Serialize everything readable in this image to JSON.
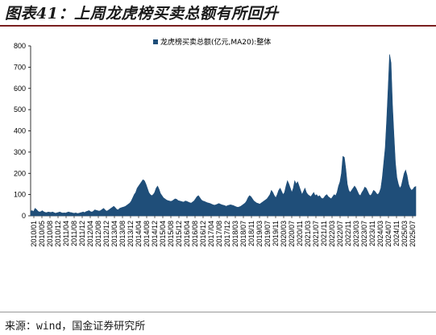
{
  "title": "图表41：上周龙虎榜买卖总额有所回升",
  "source": "来源：wind，国金证券研究所",
  "colors": {
    "series": "#1f4e79",
    "title_rule": "#7a1f1f"
  },
  "chart_data": {
    "type": "area",
    "legend": [
      "龙虎榜买卖总额(亿元,MA20):整体"
    ],
    "legend_position": "top-center",
    "grid": false,
    "ylim": [
      0,
      800
    ],
    "y_ticks": [
      "0",
      "100",
      "200",
      "300",
      "400",
      "500",
      "600",
      "700",
      "800"
    ],
    "x_ticks": [
      "2010/01",
      "2010/05",
      "2010/08",
      "2010/12",
      "2011/04",
      "2011/08",
      "2011/12",
      "2012/04",
      "2012/08",
      "2012/12",
      "2013/04",
      "2013/08",
      "2013/12",
      "2014/04",
      "2014/08",
      "2014/12",
      "2015/04",
      "2015/08",
      "2015/12",
      "2016/04",
      "2016/08",
      "2016/12",
      "2017/04",
      "2017/08",
      "2017/12",
      "2018/03",
      "2018/07",
      "2018/11",
      "2019/03",
      "2019/07",
      "2019/11",
      "2020/03",
      "2020/07",
      "2020/11",
      "2021/03",
      "2021/07",
      "2021/11",
      "2022/03",
      "2022/07",
      "2022/11",
      "2023/03",
      "2023/07",
      "2023/11",
      "2024/03",
      "2024/07",
      "2024/11",
      "2025/03",
      "2025/07"
    ],
    "series": [
      {
        "name": "龙虎榜买卖总额(亿元,MA20):整体",
        "points": [
          [
            0,
            22
          ],
          [
            1,
            25
          ],
          [
            2,
            20
          ],
          [
            3,
            35
          ],
          [
            4,
            30
          ],
          [
            5,
            22
          ],
          [
            6,
            18
          ],
          [
            7,
            20
          ],
          [
            8,
            24
          ],
          [
            9,
            19
          ],
          [
            10,
            16
          ],
          [
            11,
            15
          ],
          [
            12,
            18
          ],
          [
            13,
            17
          ],
          [
            14,
            16
          ],
          [
            15,
            18
          ],
          [
            16,
            15
          ],
          [
            17,
            12
          ],
          [
            18,
            14
          ],
          [
            19,
            16
          ],
          [
            20,
            18
          ],
          [
            21,
            15
          ],
          [
            22,
            13
          ],
          [
            23,
            14
          ],
          [
            24,
            13
          ],
          [
            25,
            16
          ],
          [
            26,
            18
          ],
          [
            27,
            16
          ],
          [
            28,
            15
          ],
          [
            29,
            13
          ],
          [
            30,
            12
          ],
          [
            31,
            14
          ],
          [
            32,
            11
          ],
          [
            33,
            12
          ],
          [
            34,
            14
          ],
          [
            35,
            16
          ],
          [
            36,
            18
          ],
          [
            37,
            15
          ],
          [
            38,
            20
          ],
          [
            39,
            22
          ],
          [
            40,
            25
          ],
          [
            41,
            20
          ],
          [
            42,
            18
          ],
          [
            43,
            22
          ],
          [
            44,
            28
          ],
          [
            45,
            26
          ],
          [
            46,
            24
          ],
          [
            47,
            22
          ],
          [
            48,
            25
          ],
          [
            49,
            30
          ],
          [
            50,
            35
          ],
          [
            51,
            28
          ],
          [
            52,
            22
          ],
          [
            53,
            25
          ],
          [
            54,
            30
          ],
          [
            55,
            35
          ],
          [
            56,
            40
          ],
          [
            57,
            45
          ],
          [
            58,
            38
          ],
          [
            59,
            30
          ],
          [
            60,
            28
          ],
          [
            61,
            35
          ],
          [
            62,
            38
          ],
          [
            63,
            40
          ],
          [
            64,
            42
          ],
          [
            65,
            45
          ],
          [
            66,
            50
          ],
          [
            67,
            55
          ],
          [
            68,
            60
          ],
          [
            69,
            70
          ],
          [
            70,
            85
          ],
          [
            71,
            100
          ],
          [
            72,
            110
          ],
          [
            73,
            130
          ],
          [
            74,
            140
          ],
          [
            75,
            150
          ],
          [
            76,
            160
          ],
          [
            77,
            170
          ],
          [
            78,
            165
          ],
          [
            79,
            150
          ],
          [
            80,
            130
          ],
          [
            81,
            110
          ],
          [
            82,
            100
          ],
          [
            83,
            95
          ],
          [
            84,
            100
          ],
          [
            85,
            110
          ],
          [
            86,
            130
          ],
          [
            87,
            140
          ],
          [
            88,
            125
          ],
          [
            89,
            105
          ],
          [
            90,
            95
          ],
          [
            91,
            85
          ],
          [
            92,
            80
          ],
          [
            93,
            75
          ],
          [
            94,
            72
          ],
          [
            95,
            70
          ],
          [
            96,
            68
          ],
          [
            97,
            70
          ],
          [
            98,
            75
          ],
          [
            99,
            80
          ],
          [
            100,
            78
          ],
          [
            101,
            72
          ],
          [
            102,
            70
          ],
          [
            103,
            68
          ],
          [
            104,
            66
          ],
          [
            105,
            65
          ],
          [
            106,
            70
          ],
          [
            107,
            68
          ],
          [
            108,
            65
          ],
          [
            109,
            62
          ],
          [
            110,
            60
          ],
          [
            111,
            65
          ],
          [
            112,
            70
          ],
          [
            113,
            80
          ],
          [
            114,
            90
          ],
          [
            115,
            95
          ],
          [
            116,
            85
          ],
          [
            117,
            75
          ],
          [
            118,
            70
          ],
          [
            119,
            68
          ],
          [
            120,
            65
          ],
          [
            121,
            62
          ],
          [
            122,
            60
          ],
          [
            123,
            58
          ],
          [
            124,
            55
          ],
          [
            125,
            52
          ],
          [
            126,
            50
          ],
          [
            127,
            52
          ],
          [
            128,
            55
          ],
          [
            129,
            58
          ],
          [
            130,
            55
          ],
          [
            131,
            52
          ],
          [
            132,
            50
          ],
          [
            133,
            48
          ],
          [
            134,
            45
          ],
          [
            135,
            48
          ],
          [
            136,
            50
          ],
          [
            137,
            52
          ],
          [
            138,
            50
          ],
          [
            139,
            48
          ],
          [
            140,
            45
          ],
          [
            141,
            42
          ],
          [
            142,
            40
          ],
          [
            143,
            42
          ],
          [
            144,
            45
          ],
          [
            145,
            50
          ],
          [
            146,
            55
          ],
          [
            147,
            60
          ],
          [
            148,
            70
          ],
          [
            149,
            85
          ],
          [
            150,
            95
          ],
          [
            151,
            90
          ],
          [
            152,
            80
          ],
          [
            153,
            70
          ],
          [
            154,
            65
          ],
          [
            155,
            60
          ],
          [
            156,
            58
          ],
          [
            157,
            55
          ],
          [
            158,
            60
          ],
          [
            159,
            65
          ],
          [
            160,
            70
          ],
          [
            161,
            75
          ],
          [
            162,
            80
          ],
          [
            163,
            90
          ],
          [
            164,
            100
          ],
          [
            165,
            120
          ],
          [
            166,
            110
          ],
          [
            167,
            95
          ],
          [
            168,
            85
          ],
          [
            169,
            100
          ],
          [
            170,
            120
          ],
          [
            171,
            130
          ],
          [
            172,
            115
          ],
          [
            173,
            100
          ],
          [
            174,
            110
          ],
          [
            175,
            140
          ],
          [
            176,
            165
          ],
          [
            177,
            150
          ],
          [
            178,
            130
          ],
          [
            179,
            110
          ],
          [
            180,
            130
          ],
          [
            181,
            165
          ],
          [
            182,
            150
          ],
          [
            183,
            160
          ],
          [
            184,
            140
          ],
          [
            185,
            120
          ],
          [
            186,
            100
          ],
          [
            187,
            115
          ],
          [
            188,
            130
          ],
          [
            189,
            110
          ],
          [
            190,
            100
          ],
          [
            191,
            95
          ],
          [
            192,
            90
          ],
          [
            193,
            100
          ],
          [
            194,
            110
          ],
          [
            195,
            95
          ],
          [
            196,
            100
          ],
          [
            197,
            90
          ],
          [
            198,
            95
          ],
          [
            199,
            85
          ],
          [
            200,
            80
          ],
          [
            201,
            85
          ],
          [
            202,
            95
          ],
          [
            203,
            100
          ],
          [
            204,
            90
          ],
          [
            205,
            85
          ],
          [
            206,
            80
          ],
          [
            207,
            90
          ],
          [
            208,
            100
          ],
          [
            209,
            95
          ],
          [
            210,
            110
          ],
          [
            211,
            140
          ],
          [
            212,
            160
          ],
          [
            213,
            200
          ],
          [
            214,
            280
          ],
          [
            215,
            275
          ],
          [
            216,
            220
          ],
          [
            217,
            150
          ],
          [
            218,
            120
          ],
          [
            219,
            110
          ],
          [
            220,
            120
          ],
          [
            221,
            130
          ],
          [
            222,
            140
          ],
          [
            223,
            130
          ],
          [
            224,
            115
          ],
          [
            225,
            100
          ],
          [
            226,
            95
          ],
          [
            227,
            110
          ],
          [
            228,
            120
          ],
          [
            229,
            135
          ],
          [
            230,
            130
          ],
          [
            231,
            115
          ],
          [
            232,
            100
          ],
          [
            233,
            95
          ],
          [
            234,
            105
          ],
          [
            235,
            120
          ],
          [
            236,
            115
          ],
          [
            237,
            105
          ],
          [
            238,
            100
          ],
          [
            239,
            110
          ],
          [
            240,
            130
          ],
          [
            241,
            180
          ],
          [
            242,
            250
          ],
          [
            243,
            320
          ],
          [
            244,
            450
          ],
          [
            245,
            600
          ],
          [
            246,
            760
          ],
          [
            247,
            720
          ],
          [
            248,
            520
          ],
          [
            249,
            380
          ],
          [
            250,
            250
          ],
          [
            251,
            180
          ],
          [
            252,
            150
          ],
          [
            253,
            130
          ],
          [
            254,
            140
          ],
          [
            255,
            170
          ],
          [
            256,
            200
          ],
          [
            257,
            215
          ],
          [
            258,
            190
          ],
          [
            259,
            150
          ],
          [
            260,
            130
          ],
          [
            261,
            120
          ],
          [
            262,
            125
          ],
          [
            263,
            135
          ],
          [
            264,
            138
          ]
        ]
      }
    ]
  }
}
